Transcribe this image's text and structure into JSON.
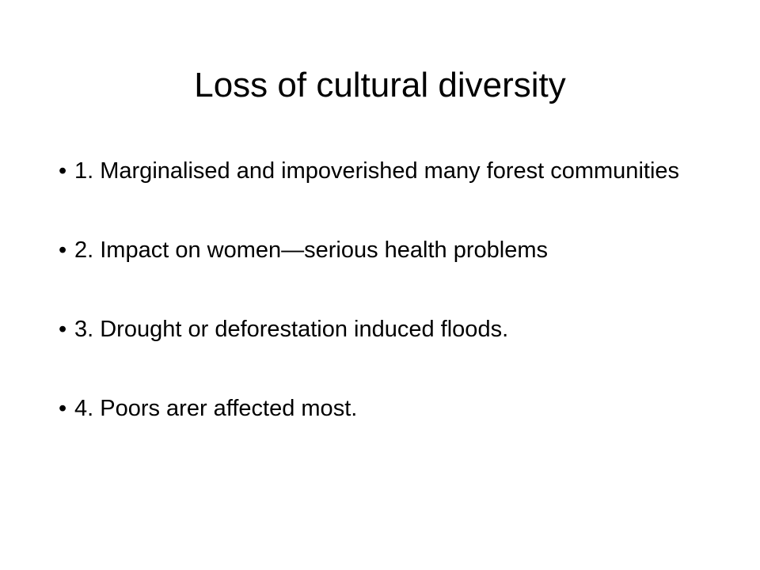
{
  "slide": {
    "title": "Loss of cultural diversity",
    "bullets": [
      "1. Marginalised and impoverished many forest communities",
      "2. Impact on women—serious health problems",
      "3. Drought or deforestation induced floods.",
      "4. Poors arer affected most."
    ]
  }
}
